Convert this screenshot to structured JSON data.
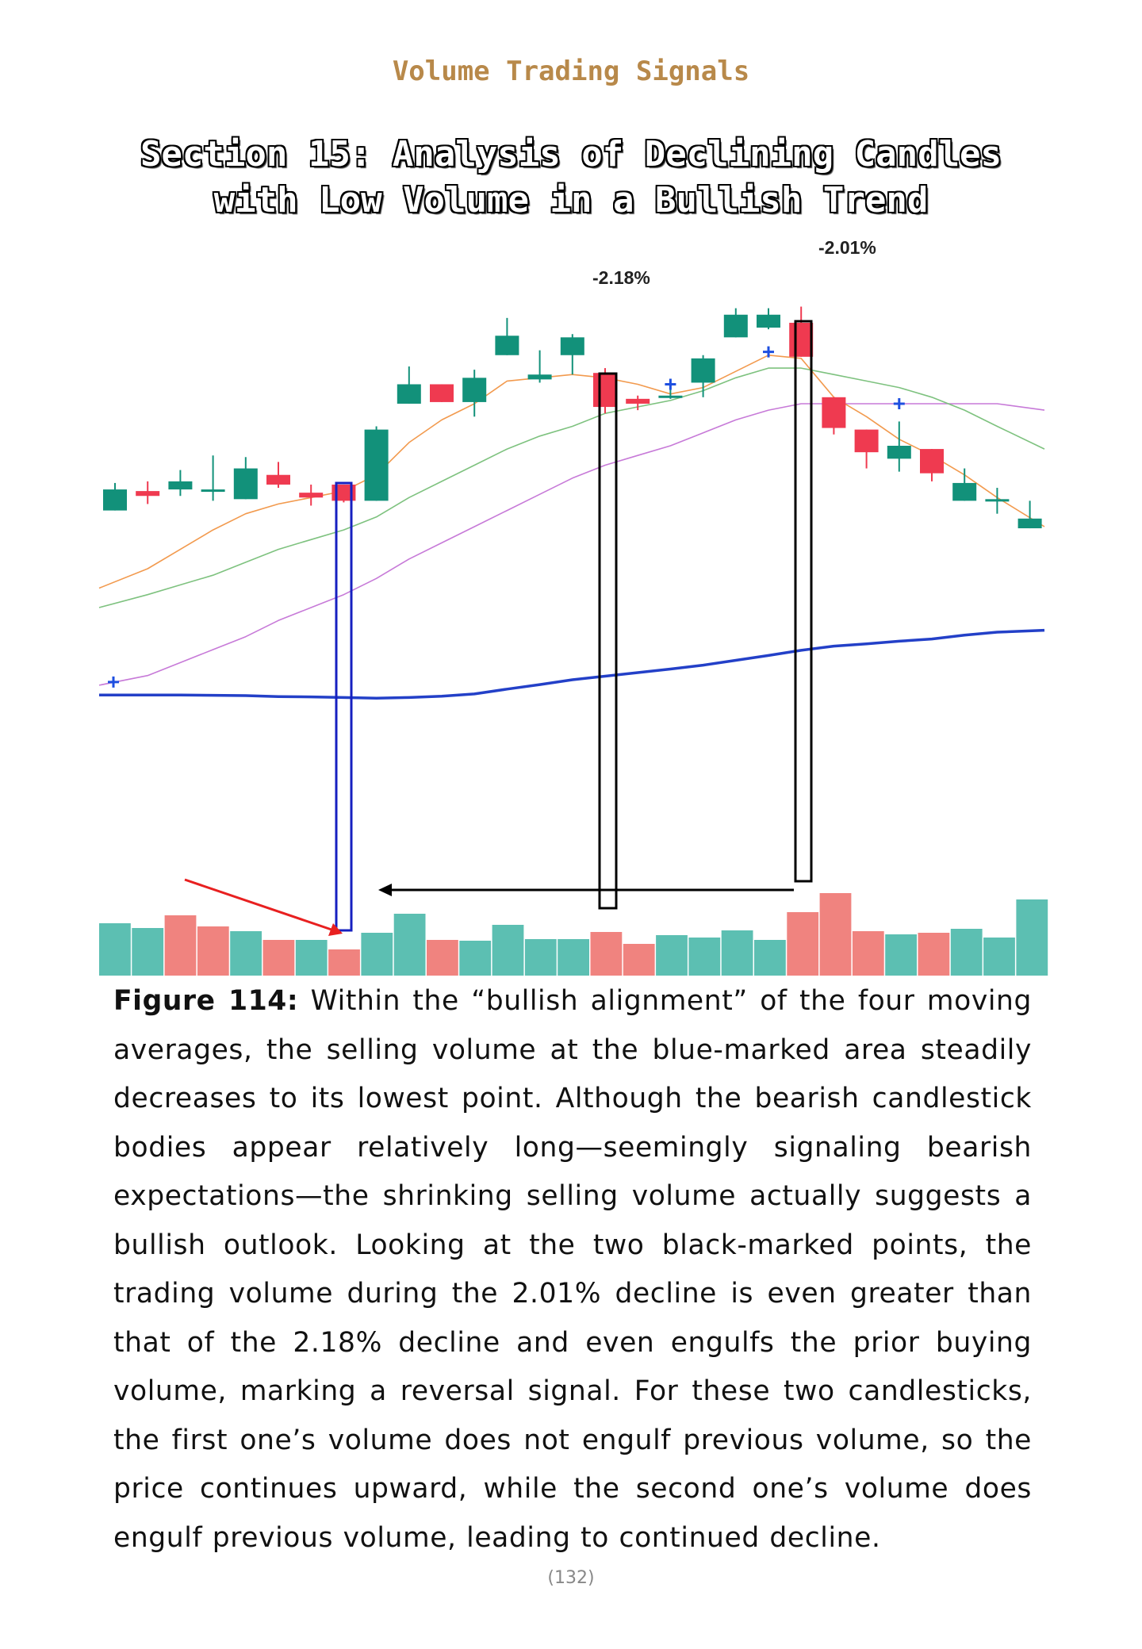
{
  "header": {
    "book_title": "Volume Trading Signals"
  },
  "section": {
    "title_line1": "Section 15: Analysis of Declining Candles",
    "title_line2": "with Low Volume in a Bullish Trend"
  },
  "colors": {
    "bull": "#12917a",
    "bear": "#ef3a50",
    "vol_bull": "#5cbfb2",
    "vol_bear": "#f0837f",
    "ma_fast": "#f29a4e",
    "ma_mid": "#7ec27f",
    "ma_slow": "#c77ad8",
    "ma_long": "#2340c8",
    "marker_blue": "#1620c0",
    "marker_black": "#000000",
    "arrow_red": "#e82020"
  },
  "chart_data": {
    "type": "candlestick",
    "candles": [
      {
        "o": 5.0,
        "c": 11.5,
        "h": 13.5,
        "l": 5.0
      },
      {
        "o": 11.0,
        "c": 9.5,
        "h": 14.0,
        "l": 7.0
      },
      {
        "o": 11.5,
        "c": 14.0,
        "h": 17.5,
        "l": 9.5
      },
      {
        "o": 11.5,
        "c": 11.5,
        "h": 22.0,
        "l": 8.0
      },
      {
        "o": 8.5,
        "c": 18.0,
        "h": 21.5,
        "l": 8.5
      },
      {
        "o": 16.0,
        "c": 13.0,
        "h": 20.0,
        "l": 12.0
      },
      {
        "o": 10.5,
        "c": 9.0,
        "h": 13.0,
        "l": 6.5
      },
      {
        "o": 13.0,
        "c": 8.0,
        "h": 13.0,
        "l": 7.5
      },
      {
        "o": 8.0,
        "c": 30.0,
        "h": 31.0,
        "l": 8.0
      },
      {
        "o": 38.0,
        "c": 44.0,
        "h": 49.5,
        "l": 38.0
      },
      {
        "o": 44.0,
        "c": 38.5,
        "h": 44.0,
        "l": 38.5
      },
      {
        "o": 38.5,
        "c": 46.0,
        "h": 48.5,
        "l": 34.0
      },
      {
        "o": 53.0,
        "c": 59.0,
        "h": 64.5,
        "l": 53.0
      },
      {
        "o": 45.5,
        "c": 47.0,
        "h": 54.5,
        "l": 44.5
      },
      {
        "o": 53.0,
        "c": 58.5,
        "h": 59.5,
        "l": 47.0
      },
      {
        "o": 47.5,
        "c": 37.0,
        "h": 49.0,
        "l": 35.0
      },
      {
        "o": 39.5,
        "c": 38.0,
        "h": 40.5,
        "l": 36.0
      },
      {
        "o": 40.0,
        "c": 40.5,
        "h": 44.0,
        "l": 39.5
      },
      {
        "o": 44.5,
        "c": 52.0,
        "h": 53.0,
        "l": 40.0
      },
      {
        "o": 58.5,
        "c": 65.5,
        "h": 67.5,
        "l": 58.5
      },
      {
        "o": 61.5,
        "c": 65.5,
        "h": 67.5,
        "l": 61.0
      },
      {
        "o": 63.0,
        "c": 52.5,
        "h": 68.0,
        "l": 52.5
      },
      {
        "o": 40.0,
        "c": 30.5,
        "h": 40.0,
        "l": 28.5
      },
      {
        "o": 30.0,
        "c": 23.0,
        "h": 30.0,
        "l": 18.0
      },
      {
        "o": 21.0,
        "c": 25.0,
        "h": 32.5,
        "l": 17.0
      },
      {
        "o": 24.0,
        "c": 16.5,
        "h": 24.0,
        "l": 14.0
      },
      {
        "o": 8.0,
        "c": 13.5,
        "h": 18.0,
        "l": 8.0
      },
      {
        "o": 8.0,
        "c": 8.5,
        "h": 12.0,
        "l": 4.0
      },
      {
        "o": -0.5,
        "c": 2.5,
        "h": 8.0,
        "l": -0.5
      }
    ],
    "ma_fast": [
      -19,
      -13,
      -7,
      -1,
      4,
      7,
      9,
      11,
      16,
      26,
      33,
      38,
      45,
      46,
      47,
      46,
      44,
      41,
      43,
      48,
      53,
      52,
      40,
      34,
      27,
      22,
      16,
      9,
      0
    ],
    "ma_mid": [
      -25,
      -21,
      -18,
      -15,
      -11,
      -7,
      -4,
      -1,
      3,
      9,
      14,
      19,
      24,
      28,
      31,
      35,
      37,
      39,
      42,
      46,
      49,
      49,
      47,
      45,
      43,
      40,
      36,
      31,
      24
    ],
    "ma_slow": [
      -49,
      -46,
      -42,
      -38,
      -34,
      -29,
      -25,
      -21,
      -16,
      -10,
      -5,
      0,
      5,
      10,
      15,
      19,
      22,
      25,
      29,
      33,
      36,
      38,
      38,
      38,
      38,
      38,
      38,
      38,
      36
    ],
    "ma_long": [
      -52,
      -52,
      -52,
      -52.1,
      -52.2,
      -52.5,
      -52.6,
      -52.8,
      -53,
      -52.8,
      -52.4,
      -51.7,
      -50.2,
      -48.8,
      -47.3,
      -46.2,
      -45.1,
      -44,
      -42.8,
      -41.3,
      -39.8,
      -38.2,
      -36.9,
      -36.2,
      -35.4,
      -34.7,
      -33.5,
      -32.6,
      -32
    ],
    "volume": [
      {
        "v": 66,
        "up": true
      },
      {
        "v": 60,
        "up": true
      },
      {
        "v": 76,
        "up": false
      },
      {
        "v": 62,
        "up": false
      },
      {
        "v": 56,
        "up": true
      },
      {
        "v": 45,
        "up": false
      },
      {
        "v": 45,
        "up": true
      },
      {
        "v": 33,
        "up": false
      },
      {
        "v": 54,
        "up": true
      },
      {
        "v": 78,
        "up": true
      },
      {
        "v": 45,
        "up": false
      },
      {
        "v": 44,
        "up": true
      },
      {
        "v": 64,
        "up": true
      },
      {
        "v": 46,
        "up": true
      },
      {
        "v": 46,
        "up": true
      },
      {
        "v": 55,
        "up": false
      },
      {
        "v": 40,
        "up": false
      },
      {
        "v": 51,
        "up": true
      },
      {
        "v": 48,
        "up": true
      },
      {
        "v": 57,
        "up": true
      },
      {
        "v": 45,
        "up": true
      },
      {
        "v": 80,
        "up": false
      },
      {
        "v": 104,
        "up": false
      },
      {
        "v": 56,
        "up": false
      },
      {
        "v": 52,
        "up": true
      },
      {
        "v": 54,
        "up": false
      },
      {
        "v": 59,
        "up": true
      },
      {
        "v": 48,
        "up": true
      },
      {
        "v": 96,
        "up": true
      }
    ],
    "annotations": [
      {
        "text": "-2.18%",
        "candle": 15
      },
      {
        "text": "-2.01%",
        "candle": 21
      }
    ],
    "markers": [
      {
        "candle": 0,
        "value": -48
      },
      {
        "candle": 17,
        "value": 44
      },
      {
        "candle": 20,
        "value": 54
      },
      {
        "candle": 24,
        "value": 38
      }
    ]
  },
  "caption": {
    "label": "Figure 114:",
    "text": " Within the “bullish alignment” of the four moving averages, the selling volume at the blue-marked area steadily decreases to its lowest point. Although the bearish candlestick bodies appear relatively long—seemingly signaling bearish expectations—the shrinking selling volume actually suggests a bullish outlook. Looking at the two black-marked points, the trading volume during the 2.01% decline is even greater than that of the 2.18% decline and even engulfs the prior buying volume, marking a reversal signal. For these two candlesticks, the first one’s volume does not engulf previous volume, so the price continues upward, while the second one’s volume does engulf previous volume, leading to continued decline."
  },
  "footer": {
    "page_number": "(132)"
  }
}
